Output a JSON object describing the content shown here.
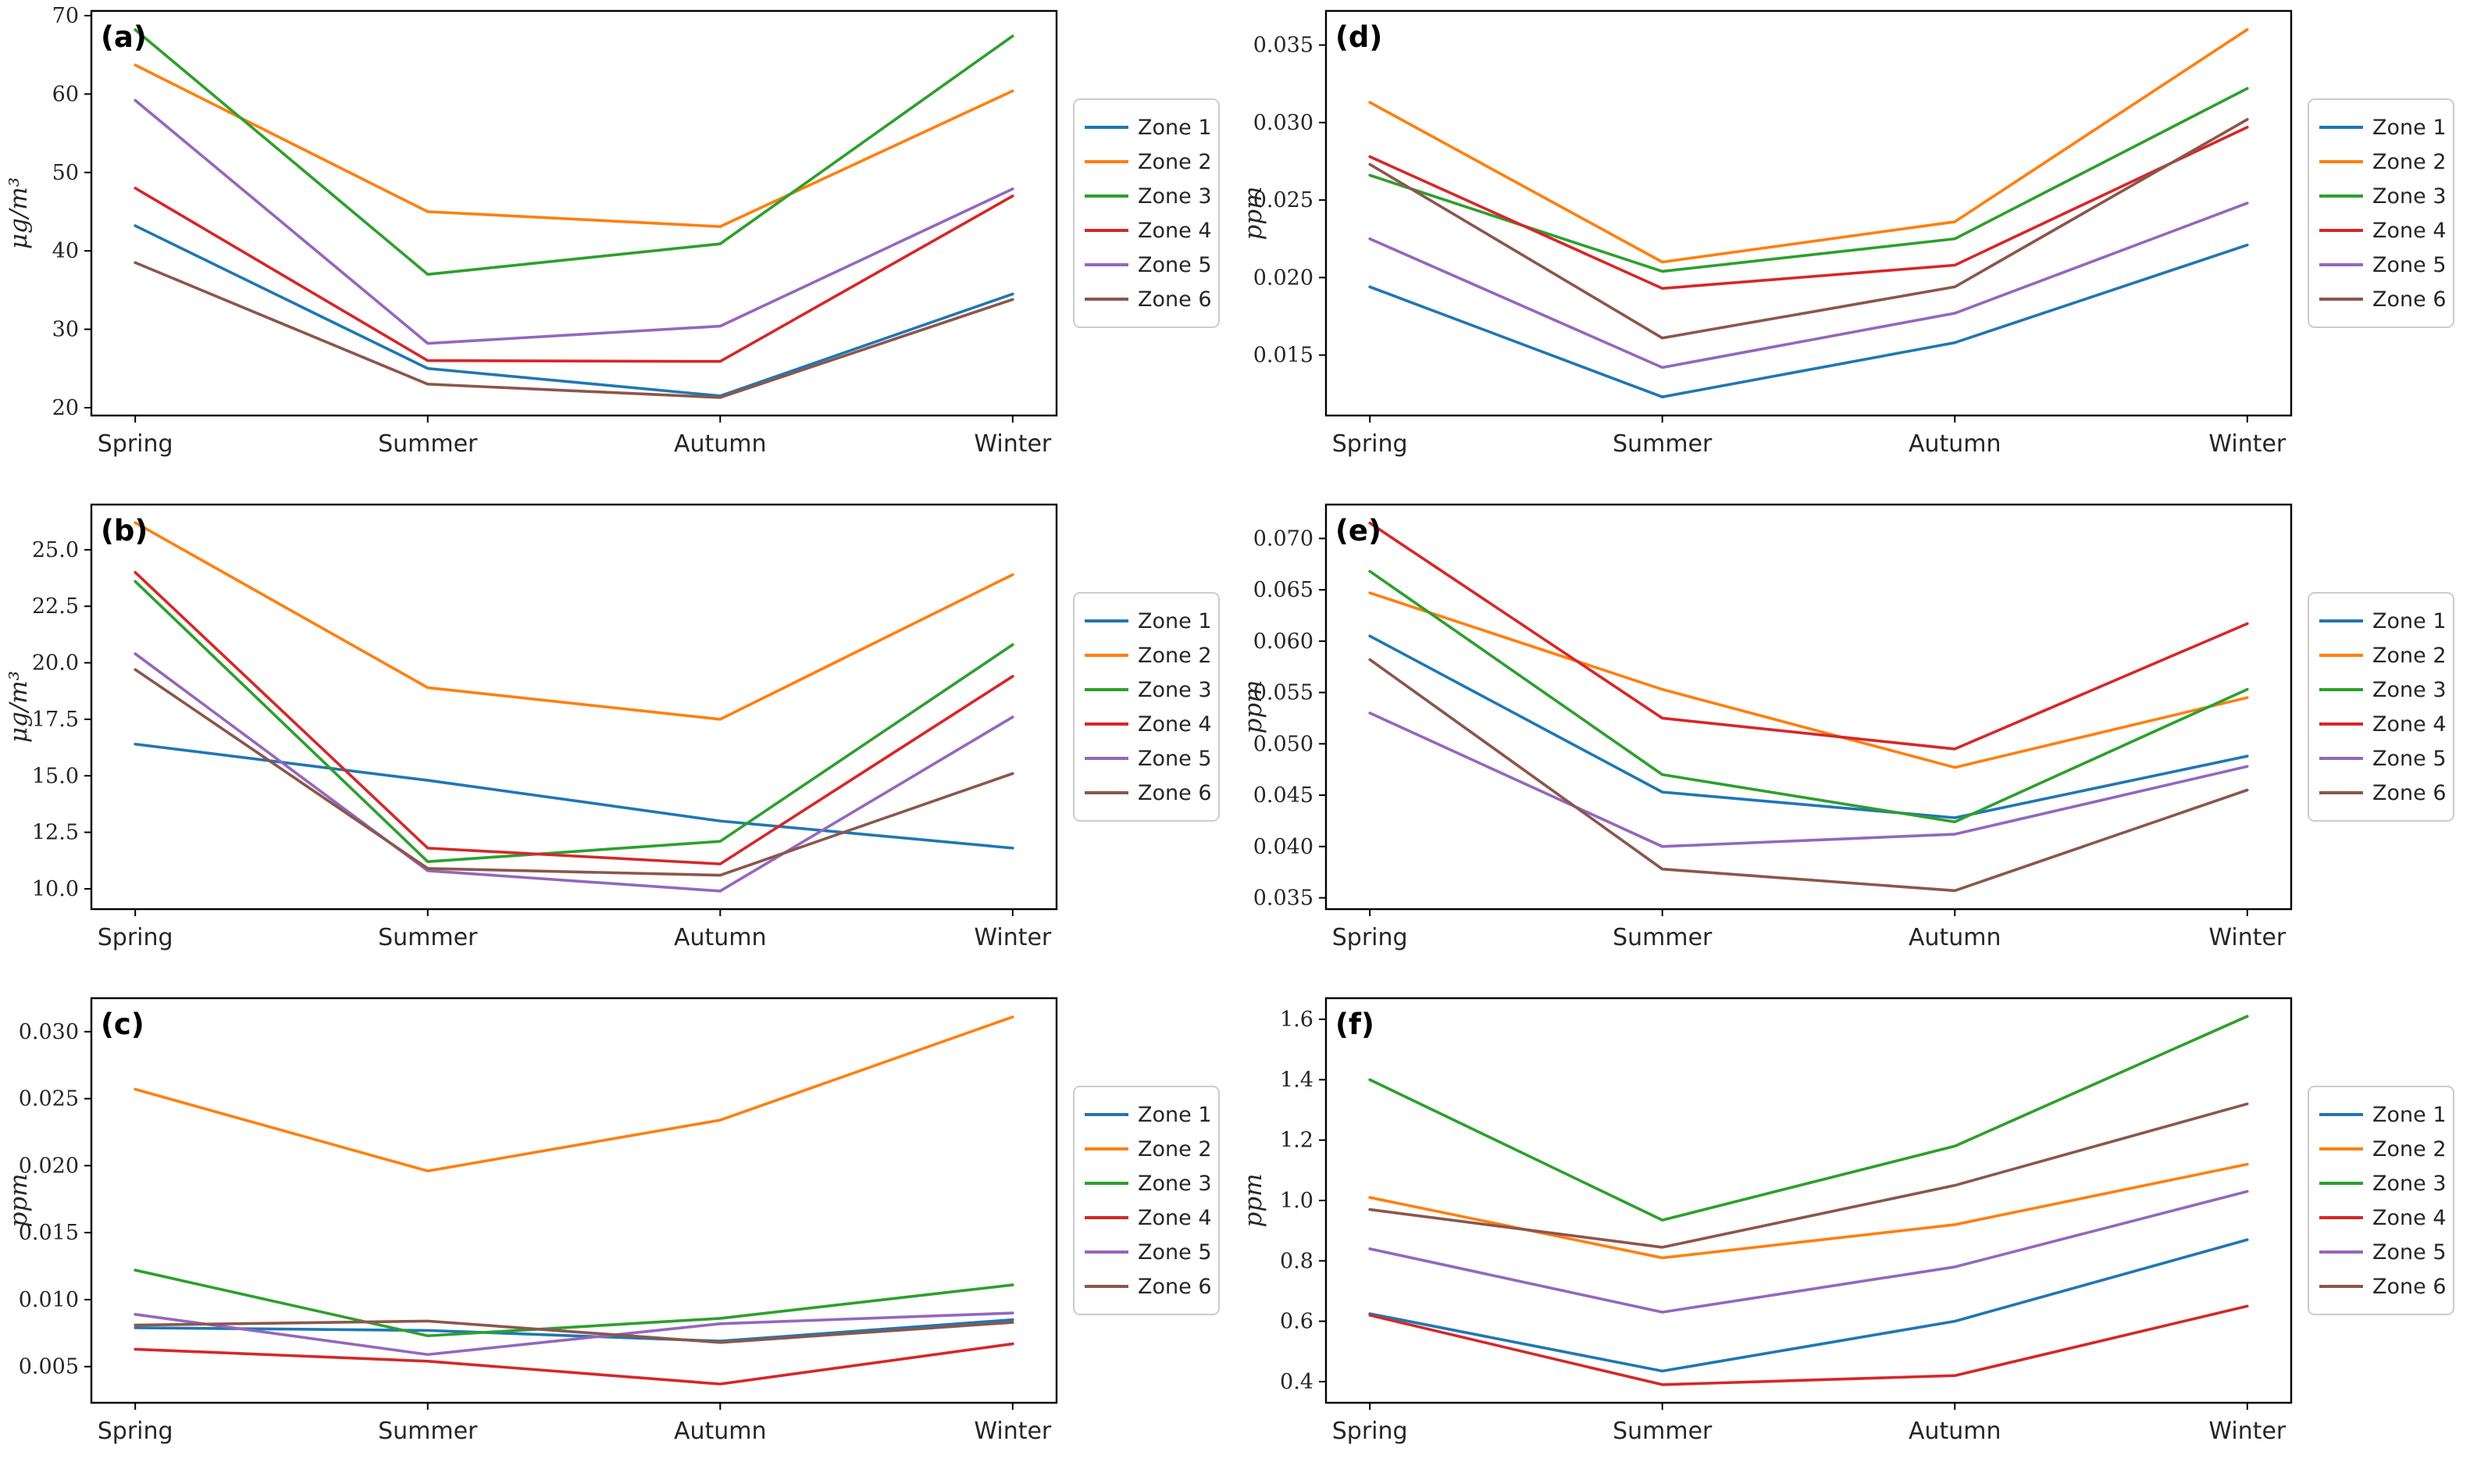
{
  "figure": {
    "title": "",
    "background": "#ffffff",
    "axis_color": "#000000",
    "tick_color": "#262626",
    "legend_border_color": "#cccccc",
    "legend_background": "#ffffff"
  },
  "legend": {
    "position": "center right outside",
    "items": [
      {
        "label": "Zone 1",
        "color": "#1f77b4"
      },
      {
        "label": "Zone 2",
        "color": "#ff7f0e"
      },
      {
        "label": "Zone 3",
        "color": "#2ca02c"
      },
      {
        "label": "Zone 4",
        "color": "#d62728"
      },
      {
        "label": "Zone 5",
        "color": "#9467bd"
      },
      {
        "label": "Zone 6",
        "color": "#8c564b"
      }
    ]
  },
  "chart_data": [
    {
      "id": "a",
      "type": "line",
      "panel_label": "(a)",
      "ylabel": "μg/m³",
      "categories": [
        "Spring",
        "Summer",
        "Autumn",
        "Winter"
      ],
      "ylim": [
        19.0,
        70.6
      ],
      "grid": false,
      "yticks": [
        {
          "value": 20,
          "label": "20"
        },
        {
          "value": 30,
          "label": "30"
        },
        {
          "value": 40,
          "label": "40"
        },
        {
          "value": 50,
          "label": "50"
        },
        {
          "value": 60,
          "label": "60"
        },
        {
          "value": 70,
          "label": "70"
        }
      ],
      "series": [
        {
          "name": "Zone 1",
          "color": "#1f77b4",
          "values": [
            43.2,
            25.0,
            21.5,
            34.5
          ]
        },
        {
          "name": "Zone 2",
          "color": "#ff7f0e",
          "values": [
            63.7,
            45.0,
            43.1,
            60.4
          ]
        },
        {
          "name": "Zone 3",
          "color": "#2ca02c",
          "values": [
            68.2,
            37.0,
            40.9,
            67.4
          ]
        },
        {
          "name": "Zone 4",
          "color": "#d62728",
          "values": [
            48.0,
            26.0,
            25.9,
            47.0
          ]
        },
        {
          "name": "Zone 5",
          "color": "#9467bd",
          "values": [
            59.2,
            28.2,
            30.4,
            47.9
          ]
        },
        {
          "name": "Zone 6",
          "color": "#8c564b",
          "values": [
            38.5,
            23.0,
            21.3,
            33.8
          ]
        }
      ]
    },
    {
      "id": "d",
      "type": "line",
      "panel_label": "(d)",
      "ylabel": "ppm",
      "categories": [
        "Spring",
        "Summer",
        "Autumn",
        "Winter"
      ],
      "ylim": [
        0.0111,
        0.0372
      ],
      "grid": false,
      "yticks": [
        {
          "value": 0.015,
          "label": "0.015"
        },
        {
          "value": 0.02,
          "label": "0.020"
        },
        {
          "value": 0.025,
          "label": "0.025"
        },
        {
          "value": 0.03,
          "label": "0.030"
        },
        {
          "value": 0.035,
          "label": "0.035"
        }
      ],
      "series": [
        {
          "name": "Zone 1",
          "color": "#1f77b4",
          "values": [
            0.0194,
            0.0123,
            0.0158,
            0.0221
          ]
        },
        {
          "name": "Zone 2",
          "color": "#ff7f0e",
          "values": [
            0.0313,
            0.021,
            0.0236,
            0.036
          ]
        },
        {
          "name": "Zone 3",
          "color": "#2ca02c",
          "values": [
            0.0266,
            0.0204,
            0.0225,
            0.0322
          ]
        },
        {
          "name": "Zone 4",
          "color": "#d62728",
          "values": [
            0.0278,
            0.0193,
            0.0208,
            0.0297
          ]
        },
        {
          "name": "Zone 5",
          "color": "#9467bd",
          "values": [
            0.0225,
            0.0142,
            0.0177,
            0.0248
          ]
        },
        {
          "name": "Zone 6",
          "color": "#8c564b",
          "values": [
            0.0273,
            0.0161,
            0.0194,
            0.0302
          ]
        }
      ]
    },
    {
      "id": "b",
      "type": "line",
      "panel_label": "(b)",
      "ylabel": "μg/m³",
      "categories": [
        "Spring",
        "Summer",
        "Autumn",
        "Winter"
      ],
      "ylim": [
        9.1,
        27.0
      ],
      "grid": false,
      "yticks": [
        {
          "value": 10.0,
          "label": "10.0"
        },
        {
          "value": 12.5,
          "label": "12.5"
        },
        {
          "value": 15.0,
          "label": "15.0"
        },
        {
          "value": 17.5,
          "label": "17.5"
        },
        {
          "value": 20.0,
          "label": "20.0"
        },
        {
          "value": 22.5,
          "label": "22.5"
        },
        {
          "value": 25.0,
          "label": "25.0"
        }
      ],
      "series": [
        {
          "name": "Zone 1",
          "color": "#1f77b4",
          "values": [
            16.4,
            14.8,
            13.0,
            11.8
          ]
        },
        {
          "name": "Zone 2",
          "color": "#ff7f0e",
          "values": [
            26.2,
            18.9,
            17.5,
            23.9
          ]
        },
        {
          "name": "Zone 3",
          "color": "#2ca02c",
          "values": [
            23.6,
            11.2,
            12.1,
            20.8
          ]
        },
        {
          "name": "Zone 4",
          "color": "#d62728",
          "values": [
            24.0,
            11.8,
            11.1,
            19.4
          ]
        },
        {
          "name": "Zone 5",
          "color": "#9467bd",
          "values": [
            20.4,
            10.8,
            9.9,
            17.6
          ]
        },
        {
          "name": "Zone 6",
          "color": "#8c564b",
          "values": [
            19.7,
            10.9,
            10.6,
            15.1
          ]
        }
      ]
    },
    {
      "id": "e",
      "type": "line",
      "panel_label": "(e)",
      "ylabel": "ppm",
      "categories": [
        "Spring",
        "Summer",
        "Autumn",
        "Winter"
      ],
      "ylim": [
        0.0339,
        0.0733
      ],
      "grid": false,
      "yticks": [
        {
          "value": 0.035,
          "label": "0.035"
        },
        {
          "value": 0.04,
          "label": "0.040"
        },
        {
          "value": 0.045,
          "label": "0.045"
        },
        {
          "value": 0.05,
          "label": "0.050"
        },
        {
          "value": 0.055,
          "label": "0.055"
        },
        {
          "value": 0.06,
          "label": "0.060"
        },
        {
          "value": 0.065,
          "label": "0.065"
        },
        {
          "value": 0.07,
          "label": "0.070"
        }
      ],
      "series": [
        {
          "name": "Zone 1",
          "color": "#1f77b4",
          "values": [
            0.0605,
            0.0453,
            0.0428,
            0.0488
          ]
        },
        {
          "name": "Zone 2",
          "color": "#ff7f0e",
          "values": [
            0.0647,
            0.0553,
            0.0477,
            0.0545
          ]
        },
        {
          "name": "Zone 3",
          "color": "#2ca02c",
          "values": [
            0.0668,
            0.047,
            0.0424,
            0.0553
          ]
        },
        {
          "name": "Zone 4",
          "color": "#d62728",
          "values": [
            0.0715,
            0.0525,
            0.0495,
            0.0617
          ]
        },
        {
          "name": "Zone 5",
          "color": "#9467bd",
          "values": [
            0.053,
            0.04,
            0.0412,
            0.0478
          ]
        },
        {
          "name": "Zone 6",
          "color": "#8c564b",
          "values": [
            0.0582,
            0.0378,
            0.0357,
            0.0455
          ]
        }
      ]
    },
    {
      "id": "c",
      "type": "line",
      "panel_label": "(c)",
      "ylabel": "ppm",
      "categories": [
        "Spring",
        "Summer",
        "Autumn",
        "Winter"
      ],
      "ylim": [
        0.0023,
        0.0325
      ],
      "grid": false,
      "yticks": [
        {
          "value": 0.005,
          "label": "0.005"
        },
        {
          "value": 0.01,
          "label": "0.010"
        },
        {
          "value": 0.015,
          "label": "0.015"
        },
        {
          "value": 0.02,
          "label": "0.020"
        },
        {
          "value": 0.025,
          "label": "0.025"
        },
        {
          "value": 0.03,
          "label": "0.030"
        }
      ],
      "series": [
        {
          "name": "Zone 1",
          "color": "#1f77b4",
          "values": [
            0.0079,
            0.0077,
            0.0069,
            0.0085
          ]
        },
        {
          "name": "Zone 2",
          "color": "#ff7f0e",
          "values": [
            0.0257,
            0.0196,
            0.0234,
            0.0311
          ]
        },
        {
          "name": "Zone 3",
          "color": "#2ca02c",
          "values": [
            0.0122,
            0.0073,
            0.0086,
            0.0111
          ]
        },
        {
          "name": "Zone 4",
          "color": "#d62728",
          "values": [
            0.0063,
            0.0054,
            0.0037,
            0.0067
          ]
        },
        {
          "name": "Zone 5",
          "color": "#9467bd",
          "values": [
            0.0089,
            0.0059,
            0.0082,
            0.009
          ]
        },
        {
          "name": "Zone 6",
          "color": "#8c564b",
          "values": [
            0.0081,
            0.0084,
            0.0068,
            0.0083
          ]
        }
      ]
    },
    {
      "id": "f",
      "type": "line",
      "panel_label": "(f)",
      "ylabel": "ppm",
      "categories": [
        "Spring",
        "Summer",
        "Autumn",
        "Winter"
      ],
      "ylim": [
        0.33,
        1.67
      ],
      "grid": false,
      "yticks": [
        {
          "value": 0.4,
          "label": "0.4"
        },
        {
          "value": 0.6,
          "label": "0.6"
        },
        {
          "value": 0.8,
          "label": "0.8"
        },
        {
          "value": 1.0,
          "label": "1.0"
        },
        {
          "value": 1.2,
          "label": "1.2"
        },
        {
          "value": 1.4,
          "label": "1.4"
        },
        {
          "value": 1.6,
          "label": "1.6"
        }
      ],
      "series": [
        {
          "name": "Zone 1",
          "color": "#1f77b4",
          "values": [
            0.625,
            0.435,
            0.6,
            0.87
          ]
        },
        {
          "name": "Zone 2",
          "color": "#ff7f0e",
          "values": [
            1.01,
            0.81,
            0.92,
            1.12
          ]
        },
        {
          "name": "Zone 3",
          "color": "#2ca02c",
          "values": [
            1.4,
            0.935,
            1.18,
            1.61
          ]
        },
        {
          "name": "Zone 4",
          "color": "#d62728",
          "values": [
            0.62,
            0.39,
            0.42,
            0.65
          ]
        },
        {
          "name": "Zone 5",
          "color": "#9467bd",
          "values": [
            0.84,
            0.63,
            0.78,
            1.03
          ]
        },
        {
          "name": "Zone 6",
          "color": "#8c564b",
          "values": [
            0.97,
            0.845,
            1.05,
            1.32
          ]
        }
      ]
    }
  ]
}
